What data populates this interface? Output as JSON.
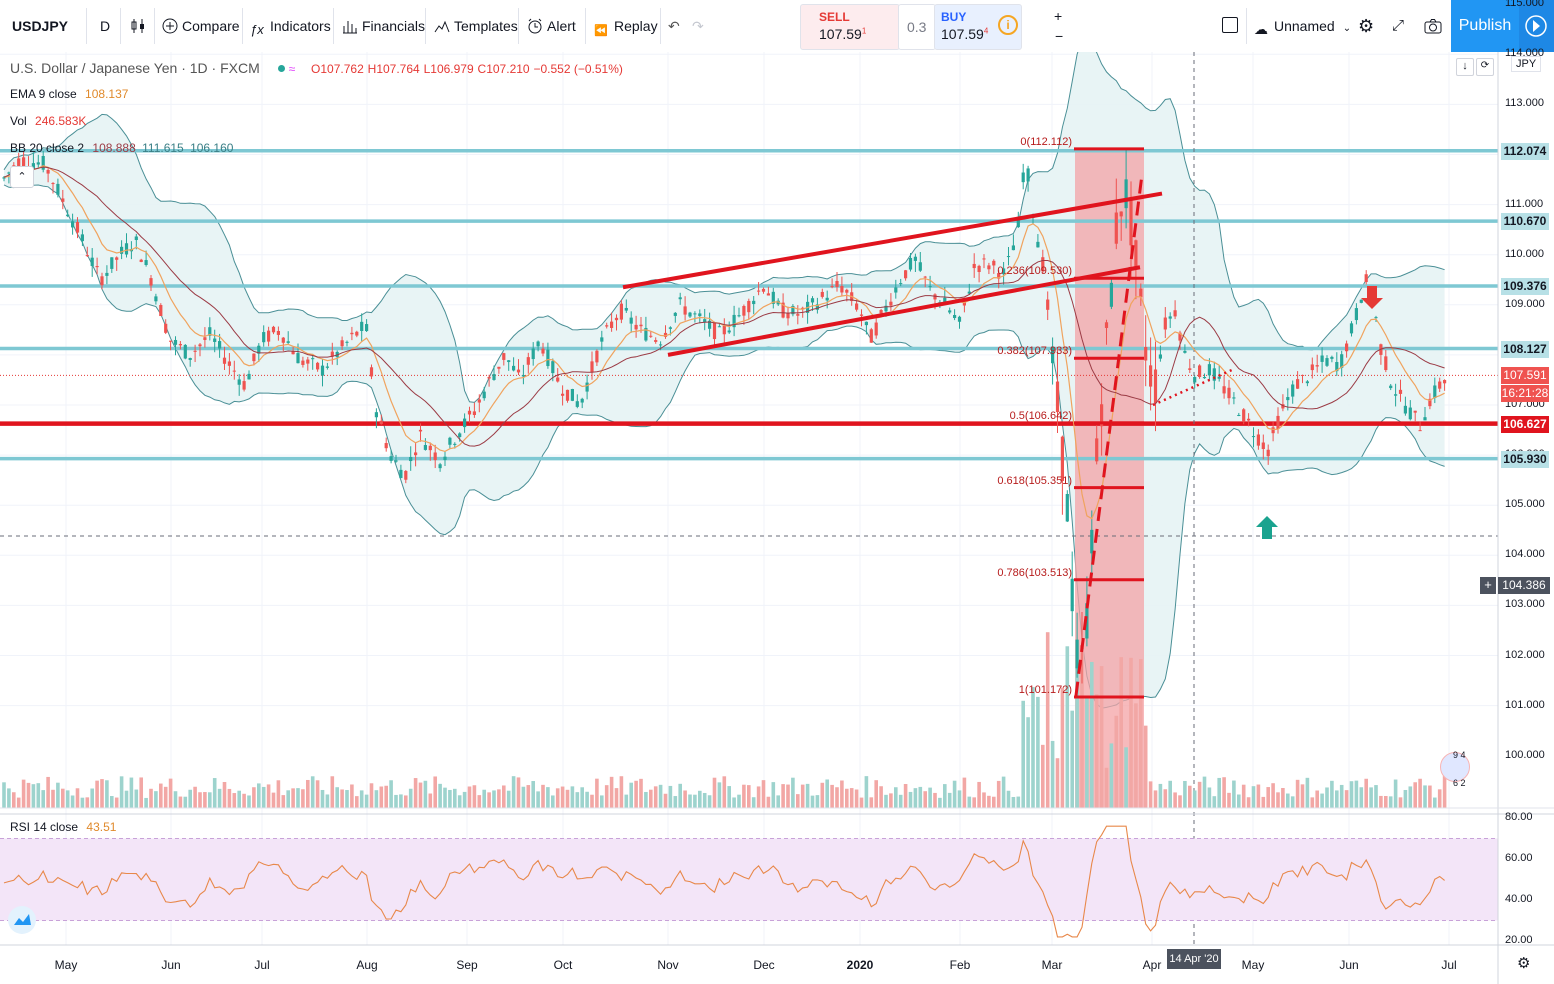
{
  "toolbar": {
    "symbol": "USDJPY",
    "interval": "D",
    "compare": "Compare",
    "indicators": "Indicators",
    "financials": "Financials",
    "templates": "Templates",
    "alert": "Alert",
    "replay": "Replay",
    "sell_label": "SELL",
    "sell_price": "107.59",
    "sell_sup": "1",
    "spread": "0.3",
    "buy_label": "BUY",
    "buy_price": "107.59",
    "buy_sup": "4",
    "layout_name": "Unnamed",
    "publish": "Publish"
  },
  "legend": {
    "title": "U.S. Dollar / Japanese Yen · 1D · FXCM",
    "open": "O107.762",
    "high": "H107.764",
    "low": "L106.979",
    "close": "C107.210",
    "change": "−0.552 (−0.51%)",
    "ema_label": "EMA 9 close",
    "ema_value": "108.137",
    "vol_label": "Vol",
    "vol_value": "246.583K",
    "bb_label": "BB 20 close 2",
    "bb_mid": "108.888",
    "bb_upper": "111.615",
    "bb_lower": "106.160",
    "rsi_label": "RSI 14 close",
    "rsi_value": "43.51",
    "currency": "JPY"
  },
  "price_axis": [
    "115.000",
    "114.000",
    "113.000",
    "112.000",
    "111.000",
    "110.000",
    "109.000",
    "108.000",
    "107.000",
    "106.000",
    "105.000",
    "104.000",
    "103.000",
    "102.000",
    "101.000",
    "100.000"
  ],
  "rsi_axis": [
    "80.00",
    "60.00",
    "40.00",
    "20.00"
  ],
  "time_axis": [
    "May",
    "Jun",
    "Jul",
    "Aug",
    "Sep",
    "Oct",
    "Nov",
    "Dec",
    "2020",
    "Feb",
    "Mar",
    "Apr",
    "May",
    "Jun",
    "Jul"
  ],
  "crosshair": {
    "date": "14 Apr '20",
    "price": "104.386"
  },
  "price_tags": [
    {
      "value": "112.074",
      "kind": "hline"
    },
    {
      "value": "110.670",
      "kind": "hline"
    },
    {
      "value": "109.376",
      "kind": "hline"
    },
    {
      "value": "108.127",
      "kind": "hline"
    },
    {
      "value": "107.591",
      "kind": "last"
    },
    {
      "value": "16:21:28",
      "kind": "countdown"
    },
    {
      "value": "106.627",
      "kind": "support"
    },
    {
      "value": "105.930",
      "kind": "hline"
    }
  ],
  "fib_levels": [
    {
      "label": "0(112.112)",
      "value": 112.112
    },
    {
      "label": "0.236(109.530)",
      "value": 109.53
    },
    {
      "label": "0.382(107.933)",
      "value": 107.933
    },
    {
      "label": "0.5(106.642)",
      "value": 106.642
    },
    {
      "label": "0.618(105.351)",
      "value": 105.351
    },
    {
      "label": "0.786(103.513)",
      "value": 103.513
    },
    {
      "label": "1(101.172)",
      "value": 101.172
    }
  ],
  "colors": {
    "up": "#26a69a",
    "down": "#ef5350",
    "hline": "#7ec8d3",
    "red_line": "#e0141e",
    "bb": "#4a8f96",
    "bb_fill": "#e6f3f4",
    "ema": "#f0a35e",
    "rsi_line": "#e8884a",
    "rsi_band": "#f3e5f8"
  },
  "chart_data": {
    "type": "candlestick",
    "title": "U.S. Dollar / Japanese Yen · 1D · FXCM",
    "ylim": [
      100,
      115
    ],
    "x": [
      "May",
      "Jun",
      "Jul",
      "Aug",
      "Sep",
      "Oct",
      "Nov",
      "Dec",
      "2020",
      "Feb",
      "Mar",
      "Apr",
      "May",
      "Jun",
      "Jul"
    ],
    "close_path": [
      [
        "Apr-19",
        111.9
      ],
      [
        "May-19",
        110.3
      ],
      [
        "Jun-19",
        108.4
      ],
      [
        "Jul-19",
        108.2
      ],
      [
        "Aug-19",
        106.1
      ],
      [
        "Sep-19",
        107.8
      ],
      [
        "Oct-19",
        108.3
      ],
      [
        "Nov-19",
        108.9
      ],
      [
        "Dec-19",
        109.1
      ],
      [
        "Jan-20",
        109.3
      ],
      [
        "Feb-20",
        110.0
      ],
      [
        "Feb-20 end",
        110.6
      ],
      [
        "Mar-20 low",
        101.2
      ],
      [
        "Mar-20 high",
        111.7
      ],
      [
        "Apr-20",
        107.9
      ],
      [
        "May-20",
        107.3
      ],
      [
        "Jun-20",
        109.8
      ],
      [
        "Jun-20 end",
        107.0
      ],
      [
        "Jul-20",
        107.6
      ]
    ],
    "rsi_ylim": [
      20,
      80
    ],
    "rsi_levels": [
      30,
      70
    ]
  }
}
